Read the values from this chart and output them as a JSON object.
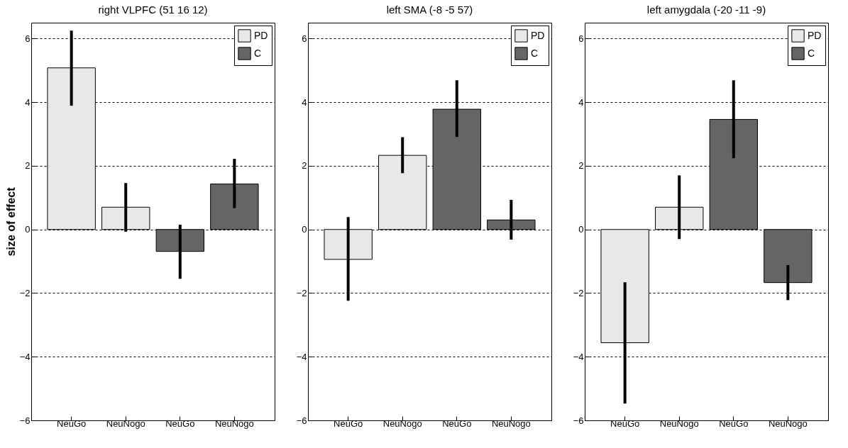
{
  "chart_data": [
    {
      "type": "bar",
      "title": "right VLPFC (51 16 12)",
      "ylabel": "size of effect",
      "categories": [
        "NeuGo",
        "NeuNogo",
        "NeuGo",
        "NeuNogo"
      ],
      "series": [
        {
          "name": "PD",
          "color": "#e8e8e8",
          "values": [
            5.08,
            0.7,
            null,
            null
          ],
          "errors": [
            [
              3.89,
              6.25
            ],
            [
              -0.07,
              1.46
            ],
            null,
            null
          ]
        },
        {
          "name": "C",
          "color": "#656565",
          "values": [
            null,
            null,
            -0.69,
            1.43
          ],
          "errors": [
            null,
            null,
            [
              -1.55,
              0.15
            ],
            [
              0.67,
              2.22
            ]
          ]
        }
      ],
      "ylim": [
        -6,
        6.5
      ],
      "yticks": [
        -6,
        -4,
        -2,
        0,
        2,
        4,
        6
      ],
      "grid": "y",
      "legend": "top right"
    },
    {
      "type": "bar",
      "title": "left SMA (-8 -5 57)",
      "categories": [
        "NeuGo",
        "NeuNogo",
        "NeuGo",
        "NeuNogo"
      ],
      "series": [
        {
          "name": "PD",
          "color": "#e8e8e8",
          "values": [
            -0.94,
            2.33,
            null,
            null
          ],
          "errors": [
            [
              -2.24,
              0.39
            ],
            [
              1.77,
              2.9
            ],
            null,
            null
          ]
        },
        {
          "name": "C",
          "color": "#656565",
          "values": [
            null,
            null,
            3.78,
            0.3
          ],
          "errors": [
            null,
            null,
            [
              2.91,
              4.69
            ],
            [
              -0.32,
              0.93
            ]
          ]
        }
      ],
      "ylim": [
        -6,
        6.5
      ],
      "yticks": [
        -6,
        -4,
        -2,
        0,
        2,
        4,
        6
      ],
      "grid": "y",
      "legend": "top right"
    },
    {
      "type": "bar",
      "title": "left amygdala (-20 -11 -9)",
      "categories": [
        "NeuGo",
        "NeuNogo",
        "NeuGo",
        "NeuNogo"
      ],
      "series": [
        {
          "name": "PD",
          "color": "#e8e8e8",
          "values": [
            -3.56,
            0.7,
            null,
            null
          ],
          "errors": [
            [
              -5.47,
              -1.66
            ],
            [
              -0.3,
              1.7
            ],
            null,
            null
          ]
        },
        {
          "name": "C",
          "color": "#656565",
          "values": [
            null,
            null,
            3.46,
            -1.67
          ],
          "errors": [
            null,
            null,
            [
              2.24,
              4.69
            ],
            [
              -2.22,
              -1.12
            ]
          ]
        }
      ],
      "ylim": [
        -6,
        6.5
      ],
      "yticks": [
        -6,
        -4,
        -2,
        0,
        2,
        4,
        6
      ],
      "grid": "y",
      "legend": "top right"
    }
  ]
}
